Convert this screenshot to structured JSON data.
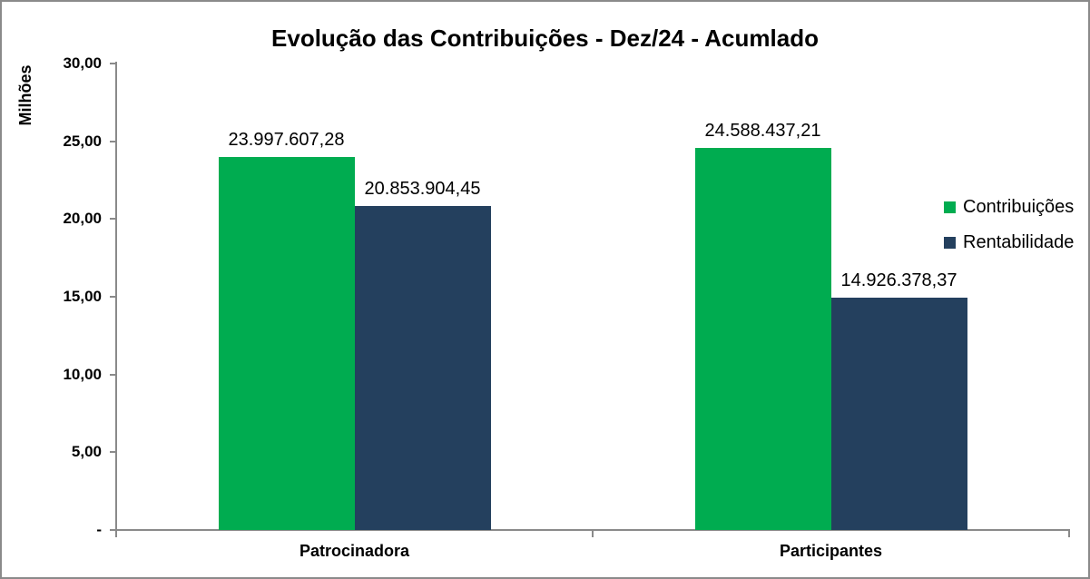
{
  "window": {
    "background_color": "#ffffff",
    "border_color": "#8a8a8a"
  },
  "chart_data": {
    "type": "bar",
    "title": "Evolução das Contribuições - Dez/24 - Acumlado",
    "y_axis_title": "Milhões",
    "xlabel": "",
    "ylabel": "Milhões",
    "ylim": [
      0,
      30000000
    ],
    "unit_divisor": 1000000,
    "grid": false,
    "legend_position": "right",
    "axis_color": "#8a8a8a",
    "y_ticks": [
      {
        "value": 30000000,
        "label": "30,00"
      },
      {
        "value": 25000000,
        "label": "25,00"
      },
      {
        "value": 20000000,
        "label": "20,00"
      },
      {
        "value": 15000000,
        "label": "15,00"
      },
      {
        "value": 10000000,
        "label": "10,00"
      },
      {
        "value": 5000000,
        "label": "5,00"
      },
      {
        "value": 0,
        "label": "-"
      }
    ],
    "categories": [
      "Patrocinadora",
      "Participantes"
    ],
    "series": [
      {
        "name": "Contribuições",
        "color": "#00ac50",
        "values": [
          23997607.28,
          24588437.21
        ],
        "labels": [
          "23.997.607,28",
          "24.588.437,21"
        ]
      },
      {
        "name": "Rentabilidade",
        "color": "#24405e",
        "values": [
          20853904.45,
          14926378.37
        ],
        "labels": [
          "20.853.904,45",
          "14.926.378,37"
        ]
      }
    ]
  }
}
